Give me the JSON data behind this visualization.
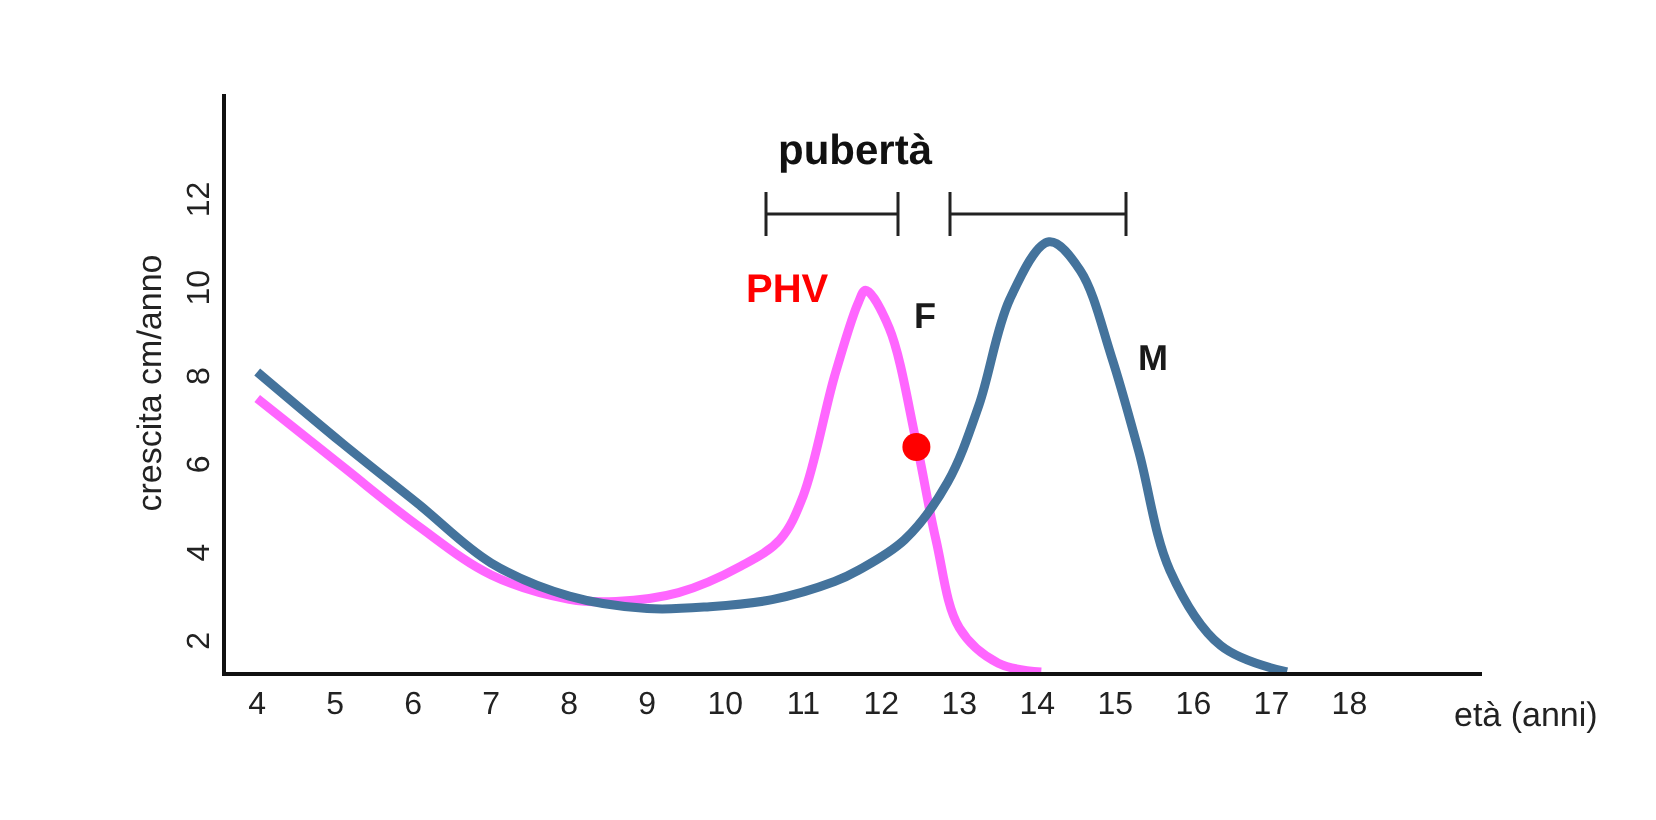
{
  "chart_data": {
    "type": "line",
    "xlabel": "età (anni)",
    "ylabel": "crescita cm/anno",
    "xlim": [
      3.6,
      19.7
    ],
    "xticks": [
      4,
      5,
      6,
      7,
      8,
      9,
      10,
      11,
      12,
      13,
      14,
      15,
      16,
      17,
      18
    ],
    "ylim": [
      1.4,
      14.5
    ],
    "yticks": [
      2,
      4,
      6,
      8,
      10,
      12
    ],
    "grid": false,
    "legend": false,
    "marker": "none",
    "line_style": "solid",
    "series": [
      {
        "name": "F",
        "color": "#ff66ff",
        "x": [
          4,
          5.1,
          6.07,
          7,
          8,
          8.6,
          9.4,
          10.2,
          10.7,
          11.0,
          11.4,
          11.7,
          11.8,
          12.1,
          12.45,
          12.7,
          13,
          13.5,
          14.05
        ],
        "values": [
          7.6,
          6.05,
          4.7,
          3.6,
          3.05,
          3.0,
          3.2,
          3.8,
          4.4,
          5.4,
          8.1,
          9.75,
          10.05,
          9.2,
          6.6,
          4.4,
          2.4,
          1.6,
          1.4
        ]
      },
      {
        "name": "M",
        "color": "#44739c",
        "x": [
          4,
          5.1,
          6.07,
          7,
          8,
          9,
          9.8,
          10.6,
          11.4,
          11.7,
          12.3,
          12.85,
          13.25,
          13.65,
          14.15,
          14.55,
          14.95,
          15.3,
          15.7,
          16.35,
          17.2
        ],
        "values": [
          8.2,
          6.57,
          5.2,
          3.87,
          3.12,
          2.84,
          2.88,
          3.04,
          3.45,
          3.7,
          4.4,
          5.7,
          7.44,
          9.86,
          11.15,
          10.5,
          8.55,
          6.4,
          3.7,
          2.0,
          1.4
        ]
      },
      {
        "type": "scatter",
        "marker": "circle",
        "color": "#ff0000",
        "x": [
          12.45
        ],
        "values": [
          6.5
        ]
      }
    ],
    "annotations": [
      {
        "text": "PHV",
        "x": 11.8,
        "y": 10.05
      },
      "pubertà"
    ]
  }
}
